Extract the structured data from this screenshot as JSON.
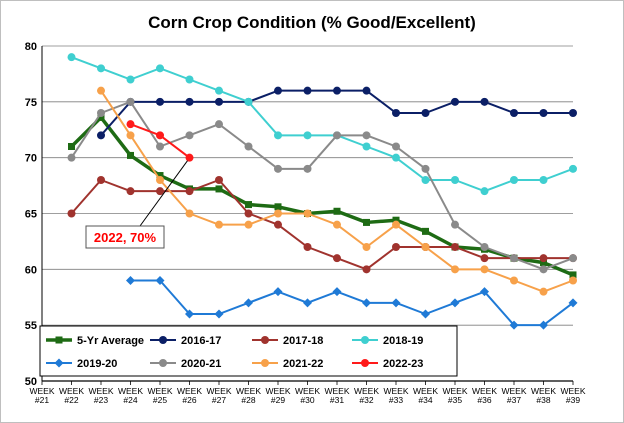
{
  "chart_data": {
    "type": "line",
    "title": "Corn Crop Condition (% Good/Excellent)",
    "xlabel": "",
    "ylabel": "",
    "ylim": [
      50,
      80
    ],
    "yticks": [
      50,
      55,
      60,
      65,
      70,
      75,
      80
    ],
    "grid": true,
    "legend_position": "bottom-left",
    "categories": [
      [
        "WEEK",
        "#21"
      ],
      [
        "WEEK",
        "#22"
      ],
      [
        "WEEK",
        "#23"
      ],
      [
        "WEEK",
        "#24"
      ],
      [
        "WEEK",
        "#25"
      ],
      [
        "WEEK",
        "#26"
      ],
      [
        "WEEK",
        "#27"
      ],
      [
        "WEEK",
        "#28"
      ],
      [
        "WEEK",
        "#29"
      ],
      [
        "WEEK",
        "#30"
      ],
      [
        "WEEK",
        "#31"
      ],
      [
        "WEEK",
        "#32"
      ],
      [
        "WEEK",
        "#33"
      ],
      [
        "WEEK",
        "#34"
      ],
      [
        "WEEK",
        "#35"
      ],
      [
        "WEEK",
        "#36"
      ],
      [
        "WEEK",
        "#37"
      ],
      [
        "WEEK",
        "#38"
      ],
      [
        "WEEK",
        "#39"
      ]
    ],
    "series": [
      {
        "name": "5-Yr Average",
        "color": "#1e6b14",
        "marker": "square",
        "width": 3.5,
        "values": [
          null,
          71,
          73.6,
          70.2,
          68.4,
          67.2,
          67.2,
          65.8,
          65.6,
          65,
          65.2,
          64.2,
          64.4,
          63.4,
          62,
          61.8,
          61,
          60.6,
          59.5
        ]
      },
      {
        "name": "2016-17",
        "color": "#0b1f66",
        "marker": "circle",
        "width": 2,
        "values": [
          null,
          null,
          72,
          75,
          75,
          75,
          75,
          75,
          76,
          76,
          76,
          76,
          74,
          74,
          75,
          75,
          74,
          74,
          74
        ]
      },
      {
        "name": "2017-18",
        "color": "#a0332e",
        "marker": "circle",
        "width": 2,
        "values": [
          null,
          65,
          68,
          67,
          67,
          67,
          68,
          65,
          64,
          62,
          61,
          60,
          62,
          62,
          62,
          61,
          61,
          61,
          61
        ]
      },
      {
        "name": "2018-19",
        "color": "#3fcfd0",
        "marker": "circle",
        "width": 2,
        "values": [
          null,
          79,
          78,
          77,
          78,
          77,
          76,
          75,
          72,
          72,
          72,
          71,
          70,
          68,
          68,
          67,
          68,
          68,
          69
        ]
      },
      {
        "name": "2019-20",
        "color": "#1f7ad6",
        "marker": "diamond",
        "width": 2,
        "values": [
          null,
          null,
          null,
          59,
          59,
          56,
          56,
          57,
          58,
          57,
          58,
          57,
          57,
          56,
          57,
          58,
          55,
          55,
          57
        ]
      },
      {
        "name": "2020-21",
        "color": "#8a8a8a",
        "marker": "circle",
        "width": 2,
        "values": [
          null,
          70,
          74,
          75,
          71,
          72,
          73,
          71,
          69,
          69,
          72,
          72,
          71,
          69,
          64,
          62,
          61,
          60,
          61
        ]
      },
      {
        "name": "2021-22",
        "color": "#f7a14a",
        "marker": "circle",
        "width": 2,
        "values": [
          null,
          null,
          76,
          72,
          68,
          65,
          64,
          64,
          65,
          65,
          64,
          62,
          64,
          62,
          60,
          60,
          59,
          58,
          59
        ]
      },
      {
        "name": "2022-23",
        "color": "#ff1a1a",
        "marker": "circle",
        "width": 2,
        "values": [
          null,
          null,
          null,
          73,
          72,
          70,
          null,
          null,
          null,
          null,
          null,
          null,
          null,
          null,
          null,
          null,
          null,
          null,
          null
        ]
      }
    ],
    "annotations": [
      {
        "text": "2022, 70%",
        "color": "#ff0000",
        "points_to": {
          "category_index": 5,
          "value": 70
        }
      }
    ]
  }
}
